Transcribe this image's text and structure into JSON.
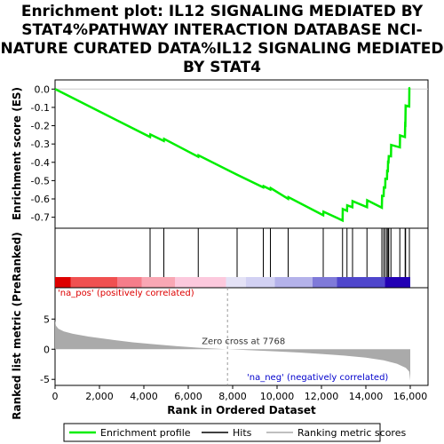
{
  "chart_data": {
    "type": "line",
    "title_lines": [
      "Enrichment plot: IL12 SIGNALING MEDIATED BY",
      "STAT4%PATHWAY INTERACTION DATABASE NCI-",
      "NATURE CURATED DATA%IL12 SIGNALING MEDIATED",
      "BY STAT4"
    ],
    "xlabel": "Rank in Ordered Dataset",
    "xlim": [
      0,
      16800
    ],
    "x_ticks": [
      0,
      2000,
      4000,
      6000,
      8000,
      10000,
      12000,
      14000,
      16000
    ],
    "x_tick_labels": [
      "0",
      "2,000",
      "4,000",
      "6,000",
      "8,000",
      "10,000",
      "12,000",
      "14,000",
      "16,000"
    ],
    "es_panel": {
      "ylabel": "Enrichment score (ES)",
      "ylim": [
        -0.76,
        0.05
      ],
      "y_ticks": [
        0.0,
        -0.1,
        -0.2,
        -0.3,
        -0.4,
        -0.5,
        -0.6,
        -0.7
      ],
      "y_tick_labels": [
        "0.0",
        "-0.1",
        "-0.2",
        "-0.3",
        "-0.4",
        "-0.5",
        "-0.6",
        "-0.7"
      ],
      "series": [
        {
          "name": "Enrichment profile",
          "color": "#00ee00",
          "points": [
            [
              0,
              0.0
            ],
            [
              4280,
              -0.262
            ],
            [
              4290,
              -0.248
            ],
            [
              4900,
              -0.283
            ],
            [
              4910,
              -0.272
            ],
            [
              6450,
              -0.37
            ],
            [
              6460,
              -0.362
            ],
            [
              8200,
              -0.468
            ],
            [
              9380,
              -0.537
            ],
            [
              9390,
              -0.53
            ],
            [
              9700,
              -0.549
            ],
            [
              9710,
              -0.541
            ],
            [
              10500,
              -0.6
            ],
            [
              10510,
              -0.59
            ],
            [
              12080,
              -0.689
            ],
            [
              12090,
              -0.67
            ],
            [
              12950,
              -0.718
            ],
            [
              12960,
              -0.655
            ],
            [
              13150,
              -0.665
            ],
            [
              13160,
              -0.635
            ],
            [
              13390,
              -0.645
            ],
            [
              13400,
              -0.612
            ],
            [
              14050,
              -0.645
            ],
            [
              14060,
              -0.607
            ],
            [
              14720,
              -0.648
            ],
            [
              14730,
              -0.583
            ],
            [
              14800,
              -0.584
            ],
            [
              14810,
              -0.537
            ],
            [
              14870,
              -0.538
            ],
            [
              14880,
              -0.49
            ],
            [
              14950,
              -0.491
            ],
            [
              14960,
              -0.447
            ],
            [
              14990,
              -0.448
            ],
            [
              15000,
              -0.398
            ],
            [
              15020,
              -0.399
            ],
            [
              15030,
              -0.366
            ],
            [
              15130,
              -0.367
            ],
            [
              15140,
              -0.305
            ],
            [
              15530,
              -0.318
            ],
            [
              15540,
              -0.253
            ],
            [
              15760,
              -0.262
            ],
            [
              15770,
              -0.192
            ],
            [
              15780,
              -0.193
            ],
            [
              15790,
              -0.09
            ],
            [
              15950,
              -0.095
            ],
            [
              15960,
              0.005
            ],
            [
              16000,
              0.007
            ]
          ]
        }
      ]
    },
    "hits": {
      "name": "Hits",
      "color": "#000000",
      "ranks": [
        4280,
        4900,
        6450,
        8200,
        9380,
        9700,
        10500,
        12080,
        12950,
        13150,
        13400,
        14050,
        14720,
        14800,
        14870,
        14950,
        15000,
        15030,
        15130,
        15530,
        15770,
        15790,
        15960
      ]
    },
    "heatmap_bands": [
      {
        "from": 0,
        "to": 700,
        "color": "#dd0000"
      },
      {
        "from": 700,
        "to": 2800,
        "color": "#f05050"
      },
      {
        "from": 2800,
        "to": 3900,
        "color": "#f57d8a"
      },
      {
        "from": 3900,
        "to": 5400,
        "color": "#f9a7b4"
      },
      {
        "from": 5400,
        "to": 7700,
        "color": "#fcc9dd"
      },
      {
        "from": 7700,
        "to": 8600,
        "color": "#e4e2f6"
      },
      {
        "from": 8600,
        "to": 9900,
        "color": "#d2d1f3"
      },
      {
        "from": 9900,
        "to": 11600,
        "color": "#b4b2ea"
      },
      {
        "from": 11600,
        "to": 12700,
        "color": "#7f7ad9"
      },
      {
        "from": 12700,
        "to": 14850,
        "color": "#4f46cc"
      },
      {
        "from": 14850,
        "to": 16000,
        "color": "#2200b4"
      }
    ],
    "metric_panel": {
      "ylabel": "Ranked list metric (PreRanked)",
      "ylim": [
        -6,
        10.2
      ],
      "y_ticks": [
        5,
        0,
        -5
      ],
      "y_tick_labels": [
        "5",
        "0",
        "-5"
      ],
      "series": [
        {
          "name": "Ranking metric scores",
          "color": "#aaaaaa",
          "points": [
            [
              0,
              4.8
            ],
            [
              40,
              3.9
            ],
            [
              150,
              3.4
            ],
            [
              400,
              2.95
            ],
            [
              800,
              2.55
            ],
            [
              1500,
              2.1
            ],
            [
              2500,
              1.6
            ],
            [
              3500,
              1.15
            ],
            [
              4500,
              0.8
            ],
            [
              5500,
              0.5
            ],
            [
              6500,
              0.25
            ],
            [
              7768,
              0.0
            ],
            [
              9000,
              -0.2
            ],
            [
              10000,
              -0.38
            ],
            [
              11000,
              -0.55
            ],
            [
              12000,
              -0.78
            ],
            [
              13000,
              -1.05
            ],
            [
              14000,
              -1.4
            ],
            [
              14800,
              -1.85
            ],
            [
              15400,
              -2.4
            ],
            [
              15800,
              -3.1
            ],
            [
              15950,
              -3.7
            ],
            [
              16000,
              -5.2
            ]
          ]
        }
      ]
    },
    "annotations": {
      "pos_label": "'na_pos' (positively correlated)",
      "pos_color": "#dd0000",
      "neg_label": "'na_neg' (negatively correlated)",
      "neg_color": "#0000cc",
      "zero_cross_label": "Zero cross at 7768",
      "zero_cross_rank": 7768
    },
    "legend": {
      "placement": "bottom",
      "entries": [
        {
          "label": "Enrichment profile",
          "color": "#00ee00"
        },
        {
          "label": "Hits",
          "color": "#000000"
        },
        {
          "label": "Ranking metric scores",
          "color": "#aaaaaa"
        }
      ]
    }
  }
}
